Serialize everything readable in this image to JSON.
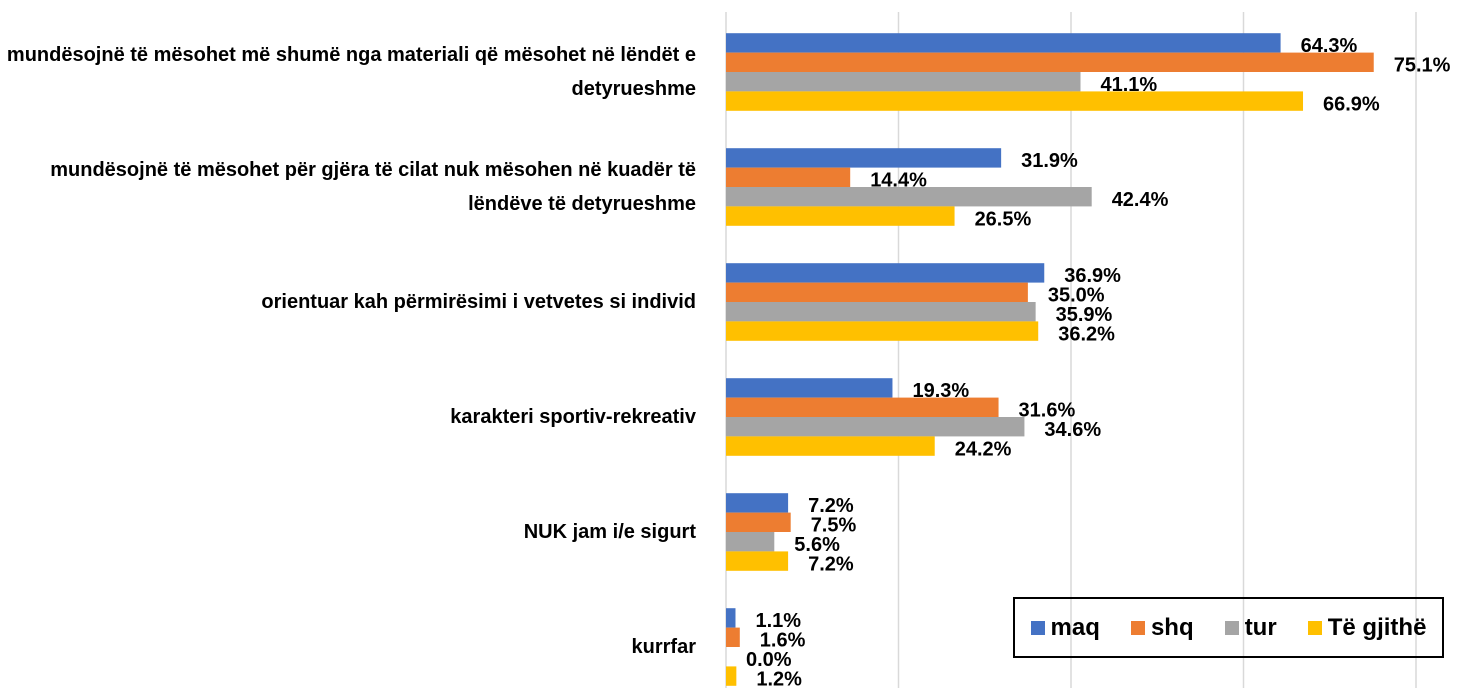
{
  "chart_data": {
    "type": "hbar",
    "categories": [
      "mundësojnë të mësohet më shumë nga materiali që mësohet në lëndët e detyrueshme",
      "mundësojnë të mësohet për gjëra të cilat nuk mësohen në kuadër të lëndëve të detyrueshme",
      "orientuar kah përmirësimi i vetvetes si individ",
      "karakteri sportiv-rekreativ",
      "NUK jam i/e sigurt",
      "kurrfar"
    ],
    "series": [
      {
        "name": "maq",
        "color": "#4472c4",
        "values": [
          64.3,
          31.9,
          36.9,
          19.3,
          7.2,
          1.1
        ],
        "value_labels": [
          "64.3%",
          "31.9%",
          "36.9%",
          "19.3%",
          "7.2%",
          "1.1%"
        ]
      },
      {
        "name": "shq",
        "color": "#ed7d31",
        "values": [
          75.1,
          14.4,
          35.0,
          31.6,
          7.5,
          1.6
        ],
        "value_labels": [
          "75.1%",
          "14.4%",
          "35.0%",
          "31.6%",
          "7.5%",
          "1.6%"
        ]
      },
      {
        "name": "tur",
        "color": "#a5a5a5",
        "values": [
          41.1,
          42.4,
          35.9,
          34.6,
          5.6,
          0.0
        ],
        "value_labels": [
          "41.1%",
          "42.4%",
          "35.9%",
          "34.6%",
          "5.6%",
          "0.0%"
        ]
      },
      {
        "name": "Të gjithë",
        "color": "#ffc000",
        "values": [
          66.9,
          26.5,
          36.2,
          24.2,
          7.2,
          1.2
        ],
        "value_labels": [
          "66.9%",
          "26.5%",
          "36.2%",
          "24.2%",
          "7.2%",
          "1.2%"
        ]
      }
    ],
    "xlim": [
      0,
      80
    ],
    "xticks": [
      0,
      20,
      40,
      60,
      80
    ],
    "grid": true,
    "legend": "lower right"
  }
}
